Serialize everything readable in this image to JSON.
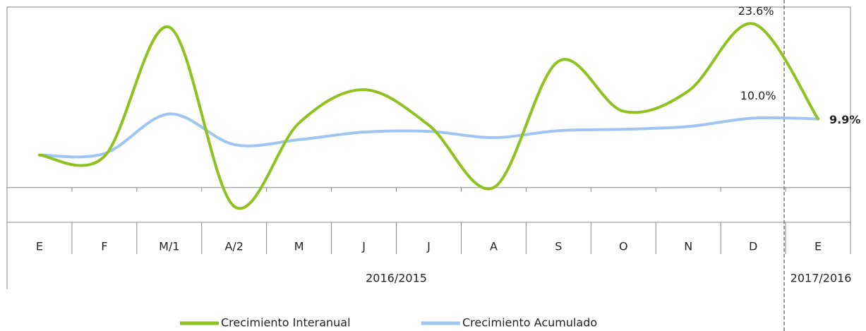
{
  "chart_data": {
    "type": "line",
    "groups": [
      {
        "label": "2016/2015",
        "categories": [
          "E",
          "F",
          "M/1",
          "A/2",
          "M",
          "J",
          "J",
          "A",
          "S",
          "O",
          "N",
          "D"
        ]
      },
      {
        "label": "2017/2016",
        "categories": [
          "E"
        ]
      }
    ],
    "series": [
      {
        "name": "Crecimiento Interanual",
        "color": "#8fc21f",
        "values": [
          4.7,
          4.5,
          23.1,
          -2.7,
          9.3,
          14.1,
          9.0,
          0.0,
          18.2,
          11.0,
          13.9,
          23.6,
          9.9
        ],
        "value_labels": [
          null,
          null,
          null,
          null,
          null,
          null,
          null,
          null,
          null,
          null,
          null,
          "23.6%",
          null
        ]
      },
      {
        "name": "Crecimiento Acumulado",
        "color": "#9fc5f2",
        "values": [
          4.7,
          4.9,
          10.6,
          6.2,
          6.9,
          8.0,
          8.1,
          7.2,
          8.2,
          8.4,
          8.8,
          10.0,
          9.9
        ],
        "value_labels": [
          null,
          null,
          null,
          null,
          null,
          null,
          null,
          null,
          null,
          null,
          null,
          "10.0%",
          "9.9%"
        ]
      }
    ],
    "ylim": [
      -5,
      26
    ]
  }
}
